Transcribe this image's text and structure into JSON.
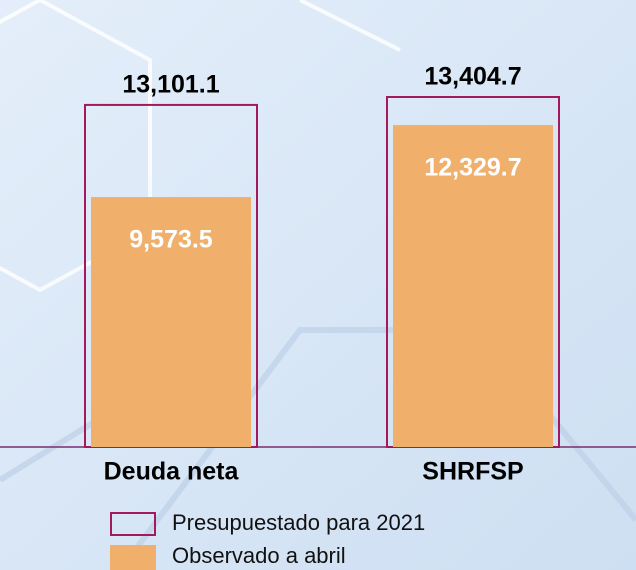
{
  "chart_data": {
    "type": "bar",
    "categories": [
      "Deuda neta",
      "SHRFSP"
    ],
    "series": [
      {
        "name": "Presupuestado para 2021",
        "color": "#a3195b",
        "style": "outline",
        "values": [
          13101.1,
          13404.7
        ],
        "value_labels": [
          "13,101.1",
          "13,404.7"
        ]
      },
      {
        "name": "Observado a abril",
        "color": "#f0b06c",
        "style": "filled",
        "values": [
          9573.5,
          12329.7
        ],
        "value_labels": [
          "9,573.5",
          "12,329.7"
        ]
      }
    ]
  }
}
